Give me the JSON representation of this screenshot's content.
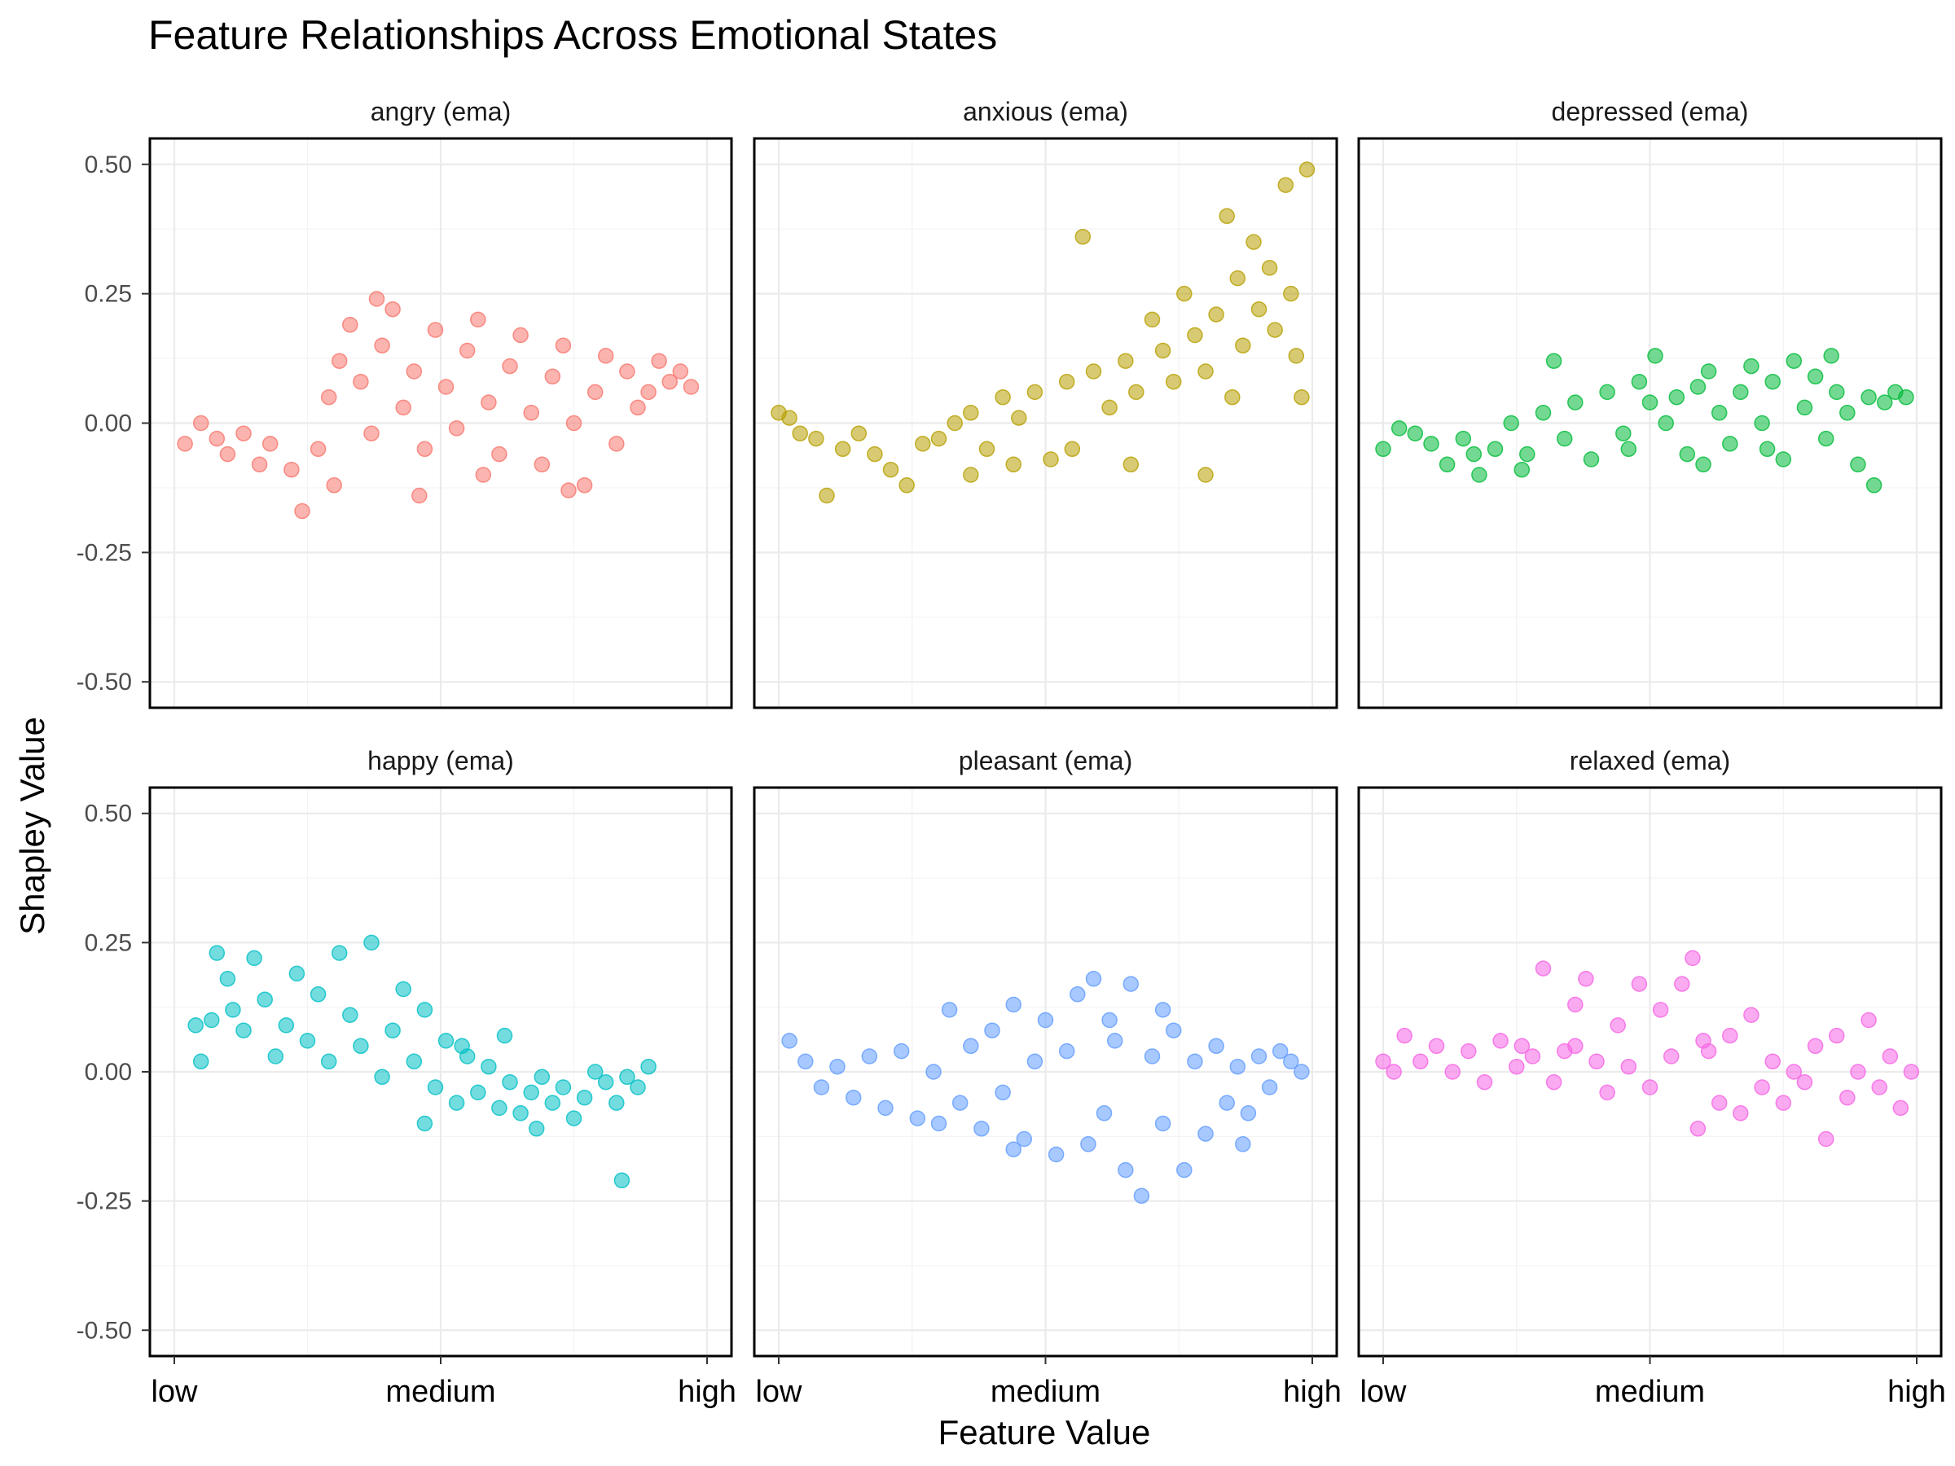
{
  "chart_data": {
    "type": "scatter",
    "title": "Feature Relationships Across Emotional States",
    "xlabel": "Feature Value",
    "ylabel": "Shapley Value",
    "xlim": [
      0,
      1
    ],
    "ylim": [
      -0.55,
      0.55
    ],
    "x_ticks": [
      {
        "value": 0.0,
        "label": "low"
      },
      {
        "value": 0.5,
        "label": "medium"
      },
      {
        "value": 1.0,
        "label": "high"
      }
    ],
    "y_ticks": [
      {
        "value": 0.5,
        "label": "0.50"
      },
      {
        "value": 0.25,
        "label": "0.25"
      },
      {
        "value": 0.0,
        "label": "0.00"
      },
      {
        "value": -0.25,
        "label": "-0.25"
      },
      {
        "value": -0.5,
        "label": "-0.50"
      }
    ],
    "grid": true,
    "legend": "none",
    "facets": [
      {
        "name": "angry (ema)",
        "color": "#F8766D",
        "points": [
          [
            0.02,
            -0.04
          ],
          [
            0.05,
            0.0
          ],
          [
            0.08,
            -0.03
          ],
          [
            0.1,
            -0.06
          ],
          [
            0.13,
            -0.02
          ],
          [
            0.16,
            -0.08
          ],
          [
            0.18,
            -0.04
          ],
          [
            0.22,
            -0.09
          ],
          [
            0.24,
            -0.17
          ],
          [
            0.27,
            -0.05
          ],
          [
            0.29,
            0.05
          ],
          [
            0.31,
            0.12
          ],
          [
            0.33,
            0.19
          ],
          [
            0.35,
            0.08
          ],
          [
            0.37,
            -0.02
          ],
          [
            0.39,
            0.15
          ],
          [
            0.41,
            0.22
          ],
          [
            0.43,
            0.03
          ],
          [
            0.45,
            0.1
          ],
          [
            0.47,
            -0.05
          ],
          [
            0.49,
            0.18
          ],
          [
            0.51,
            0.07
          ],
          [
            0.53,
            -0.01
          ],
          [
            0.55,
            0.14
          ],
          [
            0.57,
            0.2
          ],
          [
            0.59,
            0.04
          ],
          [
            0.61,
            -0.06
          ],
          [
            0.63,
            0.11
          ],
          [
            0.65,
            0.17
          ],
          [
            0.67,
            0.02
          ],
          [
            0.69,
            -0.08
          ],
          [
            0.71,
            0.09
          ],
          [
            0.73,
            0.15
          ],
          [
            0.75,
            0.0
          ],
          [
            0.77,
            -0.12
          ],
          [
            0.79,
            0.06
          ],
          [
            0.81,
            0.13
          ],
          [
            0.83,
            -0.04
          ],
          [
            0.85,
            0.1
          ],
          [
            0.87,
            0.03
          ],
          [
            0.89,
            0.06
          ],
          [
            0.91,
            0.12
          ],
          [
            0.93,
            0.08
          ],
          [
            0.95,
            0.1
          ],
          [
            0.97,
            0.07
          ],
          [
            0.38,
            0.24
          ],
          [
            0.46,
            -0.14
          ],
          [
            0.58,
            -0.1
          ],
          [
            0.74,
            -0.13
          ],
          [
            0.3,
            -0.12
          ]
        ]
      },
      {
        "name": "anxious (ema)",
        "color": "#B79F00",
        "points": [
          [
            0.0,
            0.02
          ],
          [
            0.02,
            0.01
          ],
          [
            0.04,
            -0.02
          ],
          [
            0.07,
            -0.03
          ],
          [
            0.09,
            -0.14
          ],
          [
            0.12,
            -0.05
          ],
          [
            0.15,
            -0.02
          ],
          [
            0.18,
            -0.06
          ],
          [
            0.21,
            -0.09
          ],
          [
            0.24,
            -0.12
          ],
          [
            0.27,
            -0.04
          ],
          [
            0.3,
            -0.03
          ],
          [
            0.33,
            0.0
          ],
          [
            0.36,
            0.02
          ],
          [
            0.39,
            -0.05
          ],
          [
            0.42,
            0.05
          ],
          [
            0.45,
            0.01
          ],
          [
            0.48,
            0.06
          ],
          [
            0.51,
            -0.07
          ],
          [
            0.54,
            0.08
          ],
          [
            0.57,
            0.36
          ],
          [
            0.59,
            0.1
          ],
          [
            0.62,
            0.03
          ],
          [
            0.65,
            0.12
          ],
          [
            0.67,
            0.06
          ],
          [
            0.7,
            0.2
          ],
          [
            0.72,
            0.14
          ],
          [
            0.74,
            0.08
          ],
          [
            0.76,
            0.25
          ],
          [
            0.78,
            0.17
          ],
          [
            0.8,
            0.1
          ],
          [
            0.82,
            0.21
          ],
          [
            0.84,
            0.4
          ],
          [
            0.86,
            0.28
          ],
          [
            0.87,
            0.15
          ],
          [
            0.89,
            0.35
          ],
          [
            0.9,
            0.22
          ],
          [
            0.92,
            0.3
          ],
          [
            0.93,
            0.18
          ],
          [
            0.95,
            0.46
          ],
          [
            0.96,
            0.25
          ],
          [
            0.98,
            0.05
          ],
          [
            0.99,
            0.49
          ],
          [
            0.97,
            0.13
          ],
          [
            0.85,
            0.05
          ],
          [
            0.8,
            -0.1
          ],
          [
            0.66,
            -0.08
          ],
          [
            0.55,
            -0.05
          ],
          [
            0.44,
            -0.08
          ],
          [
            0.36,
            -0.1
          ]
        ]
      },
      {
        "name": "depressed (ema)",
        "color": "#00BA38",
        "points": [
          [
            0.0,
            -0.05
          ],
          [
            0.03,
            -0.01
          ],
          [
            0.06,
            -0.02
          ],
          [
            0.09,
            -0.04
          ],
          [
            0.12,
            -0.08
          ],
          [
            0.15,
            -0.03
          ],
          [
            0.18,
            -0.1
          ],
          [
            0.21,
            -0.05
          ],
          [
            0.24,
            0.0
          ],
          [
            0.27,
            -0.06
          ],
          [
            0.3,
            0.02
          ],
          [
            0.32,
            0.12
          ],
          [
            0.34,
            -0.03
          ],
          [
            0.36,
            0.04
          ],
          [
            0.39,
            -0.07
          ],
          [
            0.42,
            0.06
          ],
          [
            0.45,
            -0.02
          ],
          [
            0.48,
            0.08
          ],
          [
            0.51,
            0.13
          ],
          [
            0.53,
            0.0
          ],
          [
            0.55,
            0.05
          ],
          [
            0.57,
            -0.06
          ],
          [
            0.59,
            0.07
          ],
          [
            0.61,
            0.1
          ],
          [
            0.63,
            0.02
          ],
          [
            0.65,
            -0.04
          ],
          [
            0.67,
            0.06
          ],
          [
            0.69,
            0.11
          ],
          [
            0.71,
            0.0
          ],
          [
            0.73,
            0.08
          ],
          [
            0.75,
            -0.07
          ],
          [
            0.77,
            0.12
          ],
          [
            0.79,
            0.03
          ],
          [
            0.81,
            0.09
          ],
          [
            0.83,
            -0.03
          ],
          [
            0.85,
            0.06
          ],
          [
            0.87,
            0.02
          ],
          [
            0.89,
            -0.08
          ],
          [
            0.91,
            0.05
          ],
          [
            0.92,
            -0.12
          ],
          [
            0.94,
            0.04
          ],
          [
            0.96,
            0.06
          ],
          [
            0.98,
            0.05
          ],
          [
            0.6,
            -0.08
          ],
          [
            0.46,
            -0.05
          ],
          [
            0.26,
            -0.09
          ],
          [
            0.17,
            -0.06
          ],
          [
            0.72,
            -0.05
          ],
          [
            0.84,
            0.13
          ],
          [
            0.5,
            0.04
          ]
        ]
      },
      {
        "name": "happy (ema)",
        "color": "#00BFC4",
        "points": [
          [
            0.04,
            0.09
          ],
          [
            0.05,
            0.02
          ],
          [
            0.07,
            0.1
          ],
          [
            0.08,
            0.23
          ],
          [
            0.1,
            0.18
          ],
          [
            0.11,
            0.12
          ],
          [
            0.13,
            0.08
          ],
          [
            0.15,
            0.22
          ],
          [
            0.17,
            0.14
          ],
          [
            0.19,
            0.03
          ],
          [
            0.21,
            0.09
          ],
          [
            0.23,
            0.19
          ],
          [
            0.25,
            0.06
          ],
          [
            0.27,
            0.15
          ],
          [
            0.29,
            0.02
          ],
          [
            0.31,
            0.23
          ],
          [
            0.33,
            0.11
          ],
          [
            0.35,
            0.05
          ],
          [
            0.37,
            0.25
          ],
          [
            0.39,
            -0.01
          ],
          [
            0.41,
            0.08
          ],
          [
            0.43,
            0.16
          ],
          [
            0.45,
            0.02
          ],
          [
            0.47,
            0.12
          ],
          [
            0.49,
            -0.03
          ],
          [
            0.51,
            0.06
          ],
          [
            0.53,
            -0.06
          ],
          [
            0.55,
            0.03
          ],
          [
            0.57,
            -0.04
          ],
          [
            0.59,
            0.01
          ],
          [
            0.61,
            -0.07
          ],
          [
            0.63,
            -0.02
          ],
          [
            0.65,
            -0.08
          ],
          [
            0.67,
            -0.04
          ],
          [
            0.69,
            -0.01
          ],
          [
            0.71,
            -0.06
          ],
          [
            0.73,
            -0.03
          ],
          [
            0.75,
            -0.09
          ],
          [
            0.77,
            -0.05
          ],
          [
            0.79,
            0.0
          ],
          [
            0.81,
            -0.02
          ],
          [
            0.83,
            -0.06
          ],
          [
            0.85,
            -0.01
          ],
          [
            0.87,
            -0.03
          ],
          [
            0.89,
            0.01
          ],
          [
            0.84,
            -0.21
          ],
          [
            0.62,
            0.07
          ],
          [
            0.54,
            0.05
          ],
          [
            0.47,
            -0.1
          ],
          [
            0.68,
            -0.11
          ]
        ]
      },
      {
        "name": "pleasant (ema)",
        "color": "#619CFF",
        "points": [
          [
            0.02,
            0.06
          ],
          [
            0.05,
            0.02
          ],
          [
            0.08,
            -0.03
          ],
          [
            0.11,
            0.01
          ],
          [
            0.14,
            -0.05
          ],
          [
            0.17,
            0.03
          ],
          [
            0.2,
            -0.07
          ],
          [
            0.23,
            0.04
          ],
          [
            0.26,
            -0.09
          ],
          [
            0.29,
            0.0
          ],
          [
            0.32,
            0.12
          ],
          [
            0.34,
            -0.06
          ],
          [
            0.36,
            0.05
          ],
          [
            0.38,
            -0.11
          ],
          [
            0.4,
            0.08
          ],
          [
            0.42,
            -0.04
          ],
          [
            0.44,
            0.13
          ],
          [
            0.46,
            -0.13
          ],
          [
            0.48,
            0.02
          ],
          [
            0.5,
            0.1
          ],
          [
            0.52,
            -0.16
          ],
          [
            0.54,
            0.04
          ],
          [
            0.56,
            0.15
          ],
          [
            0.58,
            -0.14
          ],
          [
            0.59,
            0.18
          ],
          [
            0.61,
            -0.08
          ],
          [
            0.63,
            0.06
          ],
          [
            0.65,
            -0.19
          ],
          [
            0.66,
            0.17
          ],
          [
            0.68,
            -0.24
          ],
          [
            0.7,
            0.03
          ],
          [
            0.72,
            -0.1
          ],
          [
            0.74,
            0.08
          ],
          [
            0.76,
            -0.19
          ],
          [
            0.78,
            0.02
          ],
          [
            0.8,
            -0.12
          ],
          [
            0.82,
            0.05
          ],
          [
            0.84,
            -0.06
          ],
          [
            0.86,
            0.01
          ],
          [
            0.88,
            -0.08
          ],
          [
            0.9,
            0.03
          ],
          [
            0.92,
            -0.03
          ],
          [
            0.94,
            0.04
          ],
          [
            0.96,
            0.02
          ],
          [
            0.98,
            0.0
          ],
          [
            0.87,
            -0.14
          ],
          [
            0.62,
            0.1
          ],
          [
            0.44,
            -0.15
          ],
          [
            0.3,
            -0.1
          ],
          [
            0.72,
            0.12
          ]
        ]
      },
      {
        "name": "relaxed (ema)",
        "color": "#F564E3",
        "points": [
          [
            0.0,
            0.02
          ],
          [
            0.02,
            0.0
          ],
          [
            0.04,
            0.07
          ],
          [
            0.07,
            0.02
          ],
          [
            0.1,
            0.05
          ],
          [
            0.13,
            0.0
          ],
          [
            0.16,
            0.04
          ],
          [
            0.19,
            -0.02
          ],
          [
            0.22,
            0.06
          ],
          [
            0.25,
            0.01
          ],
          [
            0.28,
            0.03
          ],
          [
            0.3,
            0.2
          ],
          [
            0.32,
            -0.02
          ],
          [
            0.34,
            0.04
          ],
          [
            0.36,
            0.13
          ],
          [
            0.38,
            0.18
          ],
          [
            0.4,
            0.02
          ],
          [
            0.42,
            -0.04
          ],
          [
            0.44,
            0.09
          ],
          [
            0.46,
            0.01
          ],
          [
            0.48,
            0.17
          ],
          [
            0.5,
            -0.03
          ],
          [
            0.52,
            0.12
          ],
          [
            0.54,
            0.03
          ],
          [
            0.56,
            0.17
          ],
          [
            0.58,
            0.22
          ],
          [
            0.59,
            -0.11
          ],
          [
            0.61,
            0.04
          ],
          [
            0.63,
            -0.06
          ],
          [
            0.65,
            0.07
          ],
          [
            0.67,
            -0.08
          ],
          [
            0.69,
            0.11
          ],
          [
            0.71,
            -0.03
          ],
          [
            0.73,
            0.02
          ],
          [
            0.75,
            -0.06
          ],
          [
            0.77,
            0.0
          ],
          [
            0.79,
            -0.02
          ],
          [
            0.81,
            0.05
          ],
          [
            0.83,
            -0.13
          ],
          [
            0.85,
            0.07
          ],
          [
            0.87,
            -0.05
          ],
          [
            0.89,
            0.0
          ],
          [
            0.91,
            0.1
          ],
          [
            0.93,
            -0.03
          ],
          [
            0.95,
            0.03
          ],
          [
            0.97,
            -0.07
          ],
          [
            0.99,
            0.0
          ],
          [
            0.36,
            0.05
          ],
          [
            0.6,
            0.06
          ],
          [
            0.26,
            0.05
          ]
        ]
      }
    ]
  }
}
